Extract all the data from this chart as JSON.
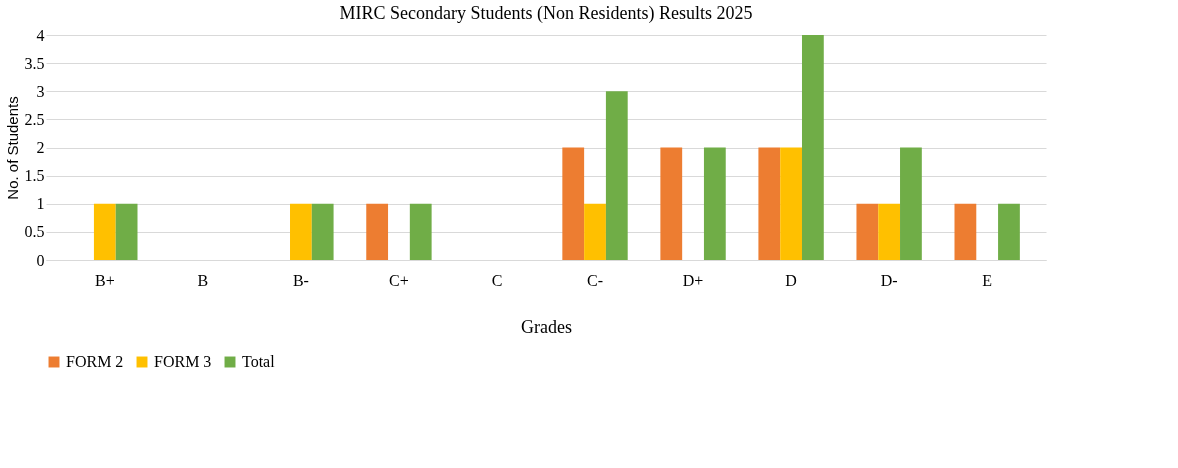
{
  "chart_data": {
    "type": "bar",
    "title": "MIRC Secondary Students (Non Residents) Results 2025",
    "xlabel": "Grades",
    "ylabel": "No. of Students",
    "categories": [
      "B+",
      "B",
      "B-",
      "C+",
      "C",
      "C-",
      "D+",
      "D",
      "D-",
      "E"
    ],
    "series": [
      {
        "name": "FORM 2",
        "color": "#ed7d31",
        "values": [
          0,
          0,
          0,
          1,
          0,
          2,
          2,
          2,
          1,
          1
        ]
      },
      {
        "name": "FORM 3",
        "color": "#ffc000",
        "values": [
          1,
          0,
          1,
          0,
          0,
          1,
          0,
          2,
          1,
          0
        ]
      },
      {
        "name": "Total",
        "color": "#70ad47",
        "values": [
          1,
          0,
          1,
          1,
          0,
          3,
          2,
          4,
          2,
          1
        ]
      }
    ],
    "ylim": [
      0,
      4
    ],
    "yticks": [
      0,
      0.5,
      1,
      1.5,
      2,
      2.5,
      3,
      3.5,
      4
    ],
    "grid": "y",
    "legend": "bottom"
  }
}
